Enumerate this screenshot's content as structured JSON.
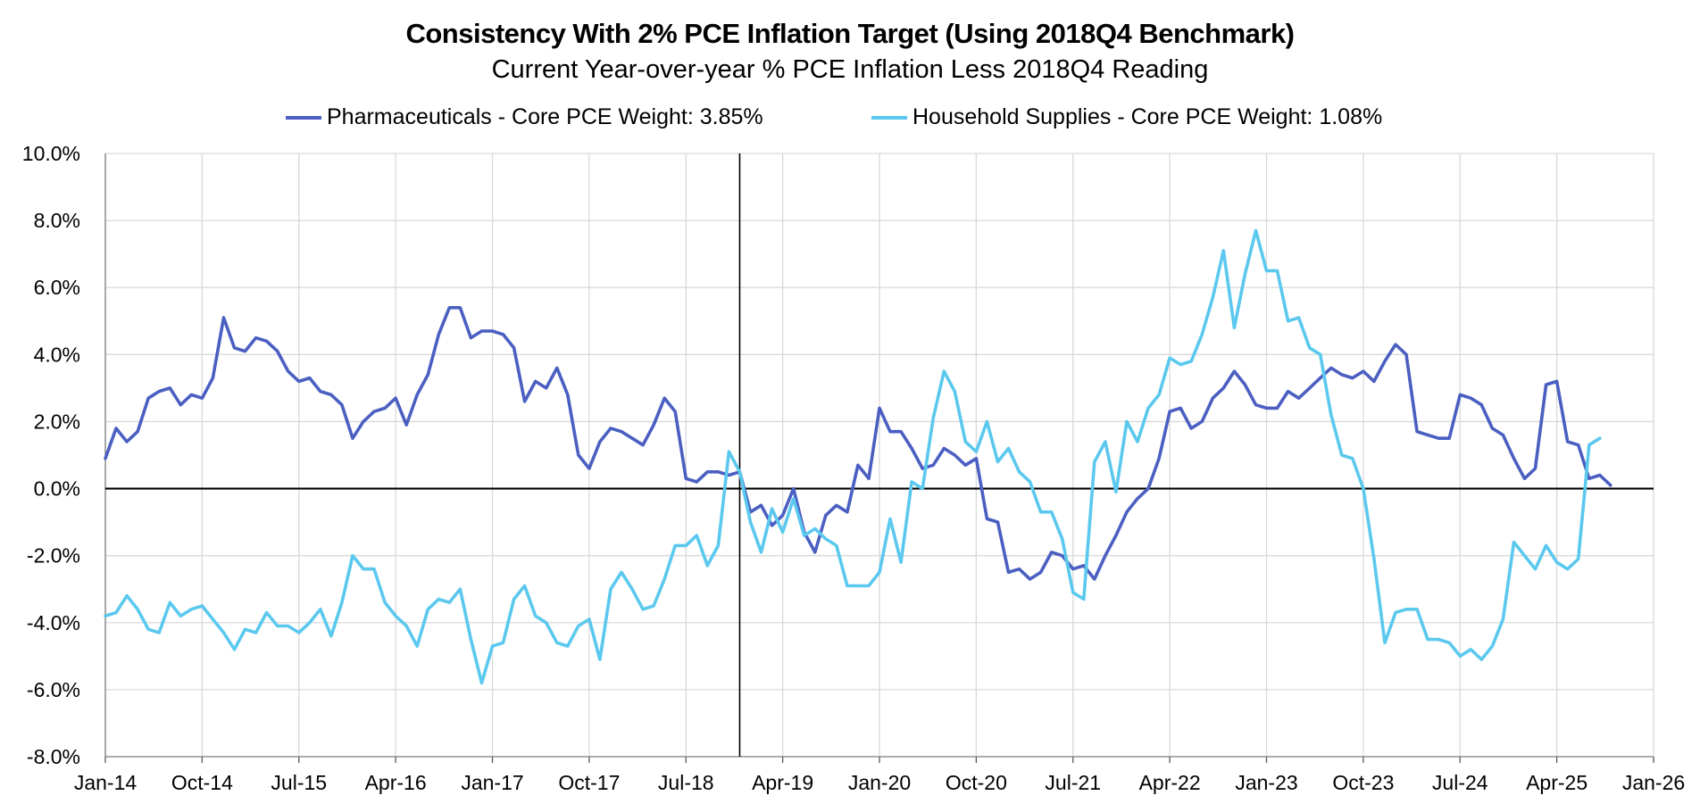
{
  "chart_data": {
    "type": "line",
    "title": "Consistency With 2% PCE Inflation Target (Using 2018Q4 Benchmark)",
    "subtitle": "Current Year-over-year % PCE Inflation Less 2018Q4 Reading",
    "xlabel": "",
    "ylabel": "",
    "y_range": [
      -8,
      10
    ],
    "y_tick_step": 2,
    "y_ticks": [
      "10.0%",
      "8.0%",
      "6.0%",
      "4.0%",
      "2.0%",
      "0.0%",
      "-2.0%",
      "-4.0%",
      "-6.0%",
      "-8.0%"
    ],
    "x_tick_labels": [
      "Jan-14",
      "Oct-14",
      "Jul-15",
      "Apr-16",
      "Jan-17",
      "Oct-17",
      "Jul-18",
      "Apr-19",
      "Jan-20",
      "Oct-20",
      "Jul-21",
      "Apr-22",
      "Jan-23",
      "Oct-23",
      "Jul-24",
      "Apr-25",
      "Jan-26"
    ],
    "x_start": "Jan-14",
    "x_month_count": 145,
    "benchmark_line": "Dec-18",
    "benchmark_month_index": 59,
    "legend_position": "top-center",
    "grid": true,
    "series": [
      {
        "name": "Pharmaceuticals - Core PCE Weight: 3.85%",
        "color": "#4a5fc1",
        "values": [
          0.9,
          1.8,
          1.4,
          1.7,
          2.7,
          2.9,
          3.0,
          2.5,
          2.8,
          2.7,
          3.3,
          5.1,
          4.2,
          4.1,
          4.5,
          4.4,
          4.1,
          3.5,
          3.2,
          3.3,
          2.9,
          2.8,
          2.5,
          1.5,
          2.0,
          2.3,
          2.4,
          2.7,
          1.9,
          2.8,
          3.4,
          4.6,
          5.4,
          5.4,
          4.5,
          4.7,
          4.7,
          4.6,
          4.2,
          2.6,
          3.2,
          3.0,
          3.6,
          2.8,
          1.0,
          0.6,
          1.4,
          1.8,
          1.7,
          1.5,
          1.3,
          1.9,
          2.7,
          2.3,
          0.3,
          0.2,
          0.5,
          0.5,
          0.4,
          0.5,
          -0.7,
          -0.5,
          -1.1,
          -0.8,
          0.0,
          -1.3,
          -1.9,
          -0.8,
          -0.5,
          -0.7,
          0.7,
          0.3,
          2.4,
          1.7,
          1.7,
          1.2,
          0.6,
          0.7,
          1.2,
          1.0,
          0.7,
          0.9,
          -0.9,
          -1.0,
          -2.5,
          -2.4,
          -2.7,
          -2.5,
          -1.9,
          -2.0,
          -2.4,
          -2.3,
          -2.7,
          -2.0,
          -1.4,
          -0.7,
          -0.3,
          0.0,
          0.9,
          2.3,
          2.4,
          1.8,
          2.0,
          2.7,
          3.0,
          3.5,
          3.1,
          2.5,
          2.4,
          2.4,
          2.9,
          2.7,
          3.0,
          3.3,
          3.6,
          3.4,
          3.3,
          3.5,
          3.2,
          3.8,
          4.3,
          4.0,
          1.7,
          1.6,
          1.5,
          1.5,
          2.8,
          2.7,
          2.5,
          1.8,
          1.6,
          0.9,
          0.3,
          0.6,
          3.1,
          3.2,
          1.4,
          1.3,
          0.3,
          0.4,
          0.1
        ]
      },
      {
        "name": "Household Supplies - Core PCE Weight: 1.08%",
        "color": "#5bc8ee",
        "values": [
          -3.8,
          -3.7,
          -3.2,
          -3.6,
          -4.2,
          -4.3,
          -3.4,
          -3.8,
          -3.6,
          -3.5,
          -3.9,
          -4.3,
          -4.8,
          -4.2,
          -4.3,
          -3.7,
          -4.1,
          -4.1,
          -4.3,
          -4.0,
          -3.6,
          -4.4,
          -3.4,
          -2.0,
          -2.4,
          -2.4,
          -3.4,
          -3.8,
          -4.1,
          -4.7,
          -3.6,
          -3.3,
          -3.4,
          -3.0,
          -4.5,
          -5.8,
          -4.7,
          -4.6,
          -3.3,
          -2.9,
          -3.8,
          -4.0,
          -4.6,
          -4.7,
          -4.1,
          -3.9,
          -5.1,
          -3.0,
          -2.5,
          -3.0,
          -3.6,
          -3.5,
          -2.7,
          -1.7,
          -1.7,
          -1.4,
          -2.3,
          -1.7,
          1.1,
          0.5,
          -1.0,
          -1.9,
          -0.6,
          -1.3,
          -0.3,
          -1.4,
          -1.2,
          -1.5,
          -1.7,
          -2.9,
          -2.9,
          -2.9,
          -2.5,
          -0.9,
          -2.2,
          0.2,
          0.0,
          2.1,
          3.5,
          2.9,
          1.4,
          1.1,
          2.0,
          0.8,
          1.2,
          0.5,
          0.2,
          -0.7,
          -0.7,
          -1.5,
          -3.1,
          -3.3,
          0.8,
          1.4,
          -0.1,
          2.0,
          1.4,
          2.4,
          2.8,
          3.9,
          3.7,
          3.8,
          4.6,
          5.7,
          7.1,
          4.8,
          6.4,
          7.7,
          6.5,
          6.5,
          5.0,
          5.1,
          4.2,
          4.0,
          2.2,
          1.0,
          0.9,
          0.0,
          -2.1,
          -4.6,
          -3.7,
          -3.6,
          -3.6,
          -4.5,
          -4.5,
          -4.6,
          -5.0,
          -4.8,
          -5.1,
          -4.7,
          -3.9,
          -1.6,
          -2.0,
          -2.4,
          -1.7,
          -2.2,
          -2.4,
          -2.1,
          1.3,
          1.5
        ]
      }
    ]
  }
}
